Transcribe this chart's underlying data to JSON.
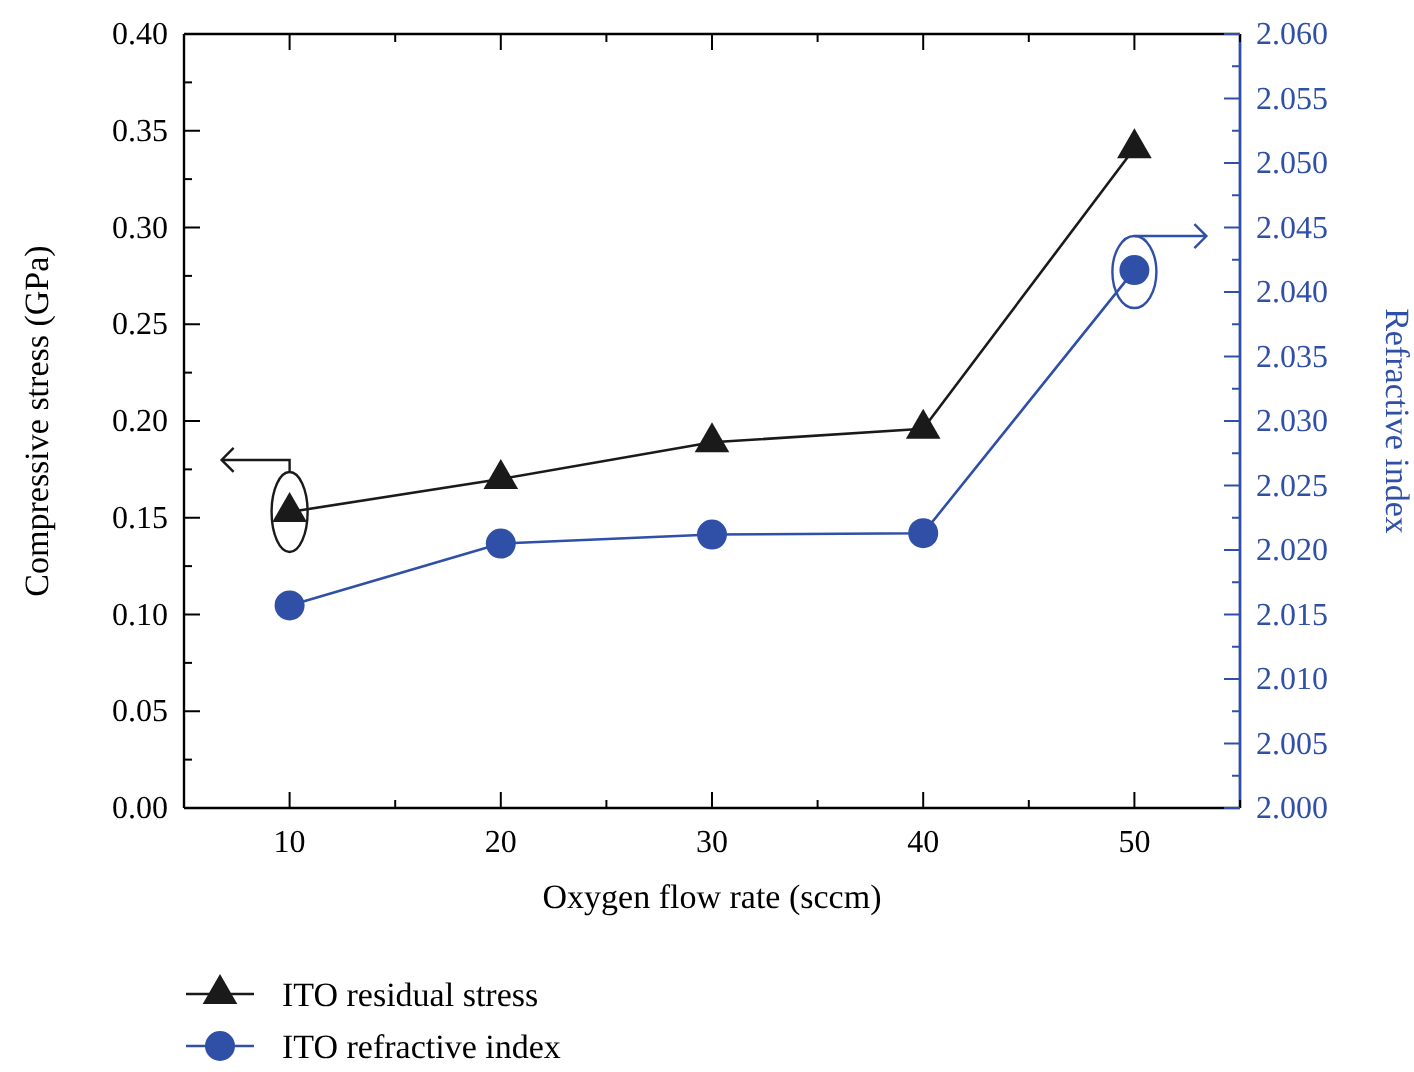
{
  "chart_data": {
    "type": "line",
    "xlabel": "Oxygen flow rate (sccm)",
    "ylabel": "Compressive stress (GPa)",
    "y2label": "Refractive index",
    "x": [
      10,
      20,
      30,
      40,
      50
    ],
    "series": [
      {
        "name": "ITO residual stress",
        "color": "#1a1a1a",
        "values": [
          0.153,
          0.17,
          0.189,
          0.196,
          0.341
        ],
        "marker": "triangle"
      },
      {
        "name": "ITO refractive index",
        "color": "#3050a8",
        "values": [
          2.0157,
          2.0205,
          2.0212,
          2.0213,
          2.0417
        ],
        "marker": "circle",
        "axis": "y2"
      }
    ],
    "xlim": [
      5,
      55
    ],
    "xticks": [
      {
        "value": 5,
        "label": null
      },
      10,
      {
        "value": 15,
        "label": null
      },
      20,
      {
        "value": 25,
        "label": null
      },
      30,
      {
        "value": 35,
        "label": null
      },
      40,
      {
        "value": 45,
        "label": null
      },
      50,
      {
        "value": 55,
        "label": null
      }
    ],
    "ylim": [
      0,
      0.4
    ],
    "yticks": [
      {
        "value": 0,
        "label": "0.00"
      },
      {
        "value": 0.05,
        "label": "0.05"
      },
      {
        "value": 0.1,
        "label": "0.10"
      },
      {
        "value": 0.15,
        "label": "0.15"
      },
      {
        "value": 0.2,
        "label": "0.20"
      },
      {
        "value": 0.25,
        "label": "0.25"
      },
      {
        "value": 0.3,
        "label": "0.30"
      },
      {
        "value": 0.35,
        "label": "0.35"
      },
      {
        "value": 0.4,
        "label": "0.40"
      }
    ],
    "y2lim": [
      2.0,
      2.06
    ],
    "y2ticks": [
      {
        "value": 2.0,
        "label": "2.000"
      },
      {
        "value": 2.005,
        "label": "2.005"
      },
      {
        "value": 2.01,
        "label": "2.010"
      },
      {
        "value": 2.015,
        "label": "2.015"
      },
      {
        "value": 2.02,
        "label": "2.020"
      },
      {
        "value": 2.025,
        "label": "2.025"
      },
      {
        "value": 2.03,
        "label": "2.030"
      },
      {
        "value": 2.035,
        "label": "2.035"
      },
      {
        "value": 2.04,
        "label": "2.040"
      },
      {
        "value": 2.045,
        "label": "2.045"
      },
      {
        "value": 2.05,
        "label": "2.050"
      },
      {
        "value": 2.055,
        "label": "2.055"
      },
      {
        "value": 2.06,
        "label": "2.060"
      }
    ],
    "grid": false,
    "legend": "bottom",
    "line_style": "solid"
  }
}
